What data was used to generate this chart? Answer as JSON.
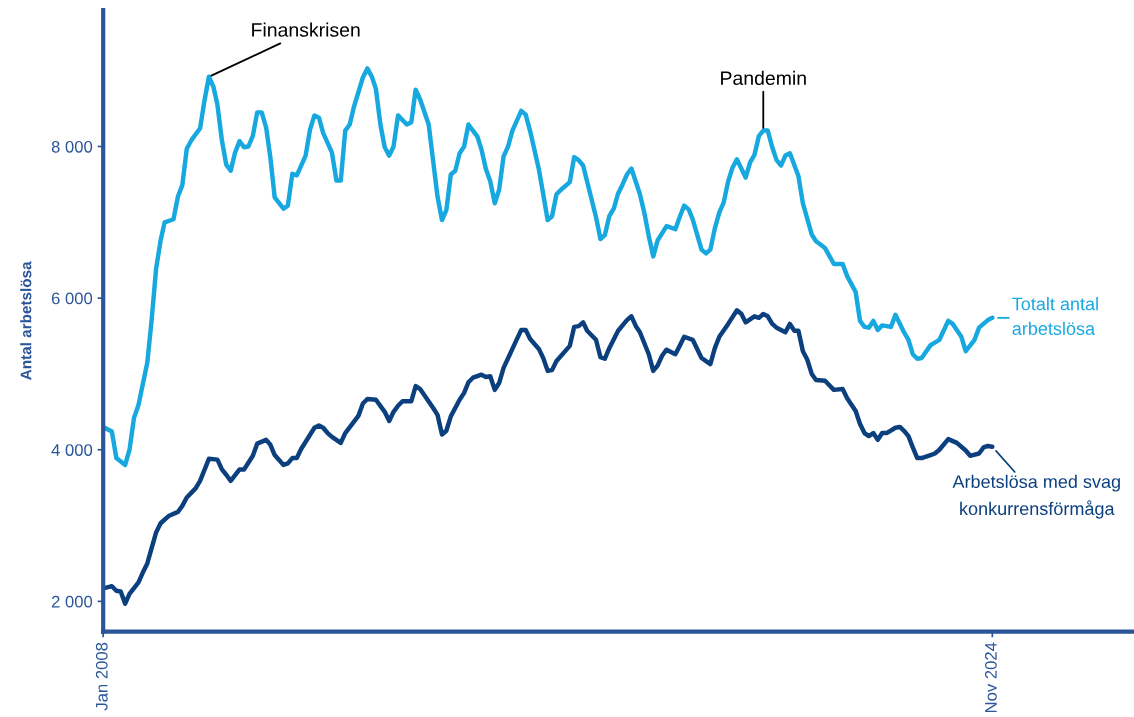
{
  "chart_data": {
    "type": "line",
    "ylabel": "Antal arbetslösa",
    "xlim": [
      "2008-01",
      "2027-07"
    ],
    "xticks": [
      {
        "value": "2008-01",
        "label": "Jan 2008"
      },
      {
        "value": "2024-11",
        "label": "Nov 2024"
      }
    ],
    "ylim": [
      1600,
      9800
    ],
    "yticks": [
      {
        "value": 2000,
        "label": "2 000"
      },
      {
        "value": 4000,
        "label": "4 000"
      },
      {
        "value": 6000,
        "label": "6 000"
      },
      {
        "value": 8000,
        "label": "8 000"
      }
    ],
    "grid": false,
    "legend": "right",
    "marker": "none",
    "line_style": "solid",
    "annotations": [
      {
        "text": "Finanskrisen",
        "x": "2010-01",
        "y": 8920
      },
      {
        "text": "Pandemin",
        "x": "2020-07",
        "y": 8210
      }
    ],
    "series": [
      {
        "name": "Totalt antal\narbetslösa",
        "color": "#17a8e0",
        "x": [
          "2008-01",
          "2008-03",
          "2008-04",
          "2008-06",
          "2008-07",
          "2008-08",
          "2008-09",
          "2008-11",
          "2008-12",
          "2009-01",
          "2009-02",
          "2009-03",
          "2009-05",
          "2009-06",
          "2009-07",
          "2009-08",
          "2009-09",
          "2009-11",
          "2009-12",
          "2010-01",
          "2010-02",
          "2010-03",
          "2010-04",
          "2010-05",
          "2010-06",
          "2010-07",
          "2010-08",
          "2010-09",
          "2010-10",
          "2010-11",
          "2010-12",
          "2011-01",
          "2011-02",
          "2011-03",
          "2011-04",
          "2011-06",
          "2011-07",
          "2011-08",
          "2011-09",
          "2011-11",
          "2011-12",
          "2012-01",
          "2012-02",
          "2012-03",
          "2012-05",
          "2012-06",
          "2012-07",
          "2012-08",
          "2012-09",
          "2012-10",
          "2012-12",
          "2013-01",
          "2013-02",
          "2013-03",
          "2013-04",
          "2013-05",
          "2013-06",
          "2013-07",
          "2013-08",
          "2013-10",
          "2013-11",
          "2013-12",
          "2014-01",
          "2014-03",
          "2014-05",
          "2014-06",
          "2014-07",
          "2014-08",
          "2014-09",
          "2014-10",
          "2014-11",
          "2014-12",
          "2015-01",
          "2015-02",
          "2015-03",
          "2015-04",
          "2015-05",
          "2015-06",
          "2015-07",
          "2015-08",
          "2015-09",
          "2015-10",
          "2015-12",
          "2016-01",
          "2016-02",
          "2016-04",
          "2016-06",
          "2016-07",
          "2016-08",
          "2016-09",
          "2016-11",
          "2016-12",
          "2017-01",
          "2017-02",
          "2017-05",
          "2017-06",
          "2017-07",
          "2017-08",
          "2017-09",
          "2017-10",
          "2017-11",
          "2017-12",
          "2018-01",
          "2018-03",
          "2018-04",
          "2018-05",
          "2018-06",
          "2018-07",
          "2018-09",
          "2018-11",
          "2018-12",
          "2019-01",
          "2019-02",
          "2019-03",
          "2019-05",
          "2019-06",
          "2019-07",
          "2019-08",
          "2019-09",
          "2019-10",
          "2019-11",
          "2019-12",
          "2020-01",
          "2020-03",
          "2020-04",
          "2020-05",
          "2020-06",
          "2020-07",
          "2020-08",
          "2020-09",
          "2020-10",
          "2020-11",
          "2020-12",
          "2021-01",
          "2021-03",
          "2021-04",
          "2021-06",
          "2021-07",
          "2021-09",
          "2021-11",
          "2022-01",
          "2022-02",
          "2022-04",
          "2022-05",
          "2022-06",
          "2022-07",
          "2022-08",
          "2022-09",
          "2022-10",
          "2022-12",
          "2023-01",
          "2023-03",
          "2023-04",
          "2023-05",
          "2023-06",
          "2023-07",
          "2023-09",
          "2023-11",
          "2024-01",
          "2024-02",
          "2024-04",
          "2024-05",
          "2024-07",
          "2024-08",
          "2024-10",
          "2024-11"
        ],
        "values": [
          4300,
          4240,
          3890,
          3800,
          4000,
          4420,
          4590,
          5150,
          5710,
          6390,
          6760,
          7000,
          7040,
          7340,
          7490,
          7970,
          8080,
          8240,
          8600,
          8920,
          8790,
          8550,
          8080,
          7760,
          7680,
          7920,
          8070,
          7990,
          8000,
          8140,
          8450,
          8450,
          8250,
          7870,
          7330,
          7180,
          7220,
          7640,
          7620,
          7880,
          8220,
          8410,
          8380,
          8180,
          7920,
          7550,
          7550,
          8210,
          8290,
          8530,
          8910,
          9030,
          8920,
          8760,
          8290,
          7990,
          7880,
          8000,
          8410,
          8290,
          8320,
          8750,
          8620,
          8290,
          7340,
          7030,
          7160,
          7630,
          7680,
          7910,
          8000,
          8290,
          8210,
          8130,
          7960,
          7700,
          7540,
          7250,
          7430,
          7870,
          8000,
          8210,
          8470,
          8420,
          8200,
          7700,
          7030,
          7080,
          7370,
          7430,
          7530,
          7860,
          7820,
          7750,
          7070,
          6780,
          6830,
          7080,
          7180,
          7380,
          7500,
          7630,
          7710,
          7370,
          7120,
          6820,
          6550,
          6760,
          6950,
          6910,
          7070,
          7220,
          7170,
          7040,
          6640,
          6590,
          6640,
          6920,
          7130,
          7260,
          7540,
          7720,
          7830,
          7590,
          7790,
          7890,
          8140,
          8210,
          8210,
          7990,
          7820,
          7750,
          7880,
          7910,
          7610,
          7250,
          6840,
          6750,
          6660,
          6450,
          6450,
          6290,
          6080,
          5700,
          5620,
          5610,
          5700,
          5580,
          5640,
          5620,
          5780,
          5550,
          5450,
          5260,
          5200,
          5210,
          5380,
          5450,
          5700,
          5660,
          5490,
          5300,
          5450,
          5610,
          5710,
          5740
        ]
      },
      {
        "name": "Arbetslösa med svag\nkonkurrensförmåga",
        "color": "#0b3f7e",
        "x": [
          "2008-01",
          "2008-03",
          "2008-04",
          "2008-05",
          "2008-06",
          "2008-07",
          "2008-09",
          "2008-10",
          "2008-11",
          "2009-01",
          "2009-02",
          "2009-04",
          "2009-06",
          "2009-07",
          "2009-08",
          "2009-10",
          "2009-11",
          "2010-01",
          "2010-03",
          "2010-04",
          "2010-05",
          "2010-06",
          "2010-08",
          "2010-09",
          "2010-11",
          "2010-12",
          "2011-02",
          "2011-03",
          "2011-04",
          "2011-06",
          "2011-07",
          "2011-08",
          "2011-09",
          "2011-10",
          "2012-01",
          "2012-02",
          "2012-03",
          "2012-04",
          "2012-05",
          "2012-07",
          "2012-08",
          "2012-11",
          "2012-12",
          "2013-01",
          "2013-03",
          "2013-05",
          "2013-06",
          "2013-07",
          "2013-08",
          "2013-09",
          "2013-11",
          "2013-12",
          "2014-01",
          "2014-04",
          "2014-05",
          "2014-06",
          "2014-07",
          "2014-08",
          "2014-10",
          "2014-11",
          "2014-12",
          "2015-01",
          "2015-03",
          "2015-04",
          "2015-05",
          "2015-06",
          "2015-07",
          "2015-08",
          "2015-10",
          "2015-11",
          "2015-12",
          "2016-01",
          "2016-02",
          "2016-04",
          "2016-05",
          "2016-06",
          "2016-07",
          "2016-08",
          "2016-11",
          "2016-12",
          "2017-01",
          "2017-02",
          "2017-03",
          "2017-05",
          "2017-06",
          "2017-07",
          "2017-08",
          "2017-10",
          "2017-12",
          "2018-01",
          "2018-02",
          "2018-03",
          "2018-05",
          "2018-06",
          "2018-07",
          "2018-08",
          "2018-09",
          "2018-11",
          "2018-12",
          "2019-01",
          "2019-03",
          "2019-05",
          "2019-06",
          "2019-07",
          "2019-08",
          "2019-09",
          "2019-11",
          "2020-01",
          "2020-02",
          "2020-03",
          "2020-05",
          "2020-06",
          "2020-07",
          "2020-08",
          "2020-09",
          "2020-10",
          "2020-12",
          "2021-01",
          "2021-02",
          "2021-03",
          "2021-04",
          "2021-05",
          "2021-06",
          "2021-07",
          "2021-09",
          "2021-10",
          "2021-11",
          "2022-01",
          "2022-02",
          "2022-04",
          "2022-05",
          "2022-06",
          "2022-07",
          "2022-08",
          "2022-09",
          "2022-10",
          "2022-11",
          "2023-01",
          "2023-02",
          "2023-03",
          "2023-04",
          "2023-05",
          "2023-06",
          "2023-07",
          "2023-09",
          "2023-10",
          "2023-11",
          "2024-01",
          "2024-03",
          "2024-05",
          "2024-06",
          "2024-08",
          "2024-09",
          "2024-10",
          "2024-11"
        ],
        "values": [
          2170,
          2200,
          2140,
          2130,
          1970,
          2100,
          2250,
          2380,
          2500,
          2910,
          3030,
          3130,
          3180,
          3260,
          3370,
          3490,
          3590,
          3880,
          3870,
          3740,
          3670,
          3590,
          3740,
          3740,
          3920,
          4080,
          4130,
          4070,
          3930,
          3800,
          3820,
          3890,
          3890,
          4010,
          4290,
          4320,
          4290,
          4220,
          4170,
          4090,
          4220,
          4450,
          4610,
          4670,
          4660,
          4500,
          4380,
          4500,
          4580,
          4640,
          4640,
          4840,
          4800,
          4550,
          4460,
          4200,
          4250,
          4440,
          4660,
          4750,
          4890,
          4950,
          4990,
          4960,
          4970,
          4790,
          4880,
          5080,
          5330,
          5460,
          5580,
          5580,
          5460,
          5330,
          5210,
          5040,
          5050,
          5170,
          5370,
          5620,
          5630,
          5680,
          5570,
          5450,
          5220,
          5200,
          5340,
          5570,
          5710,
          5760,
          5630,
          5550,
          5260,
          5040,
          5110,
          5240,
          5320,
          5260,
          5370,
          5490,
          5450,
          5210,
          5170,
          5130,
          5340,
          5490,
          5660,
          5840,
          5790,
          5680,
          5760,
          5740,
          5790,
          5760,
          5660,
          5610,
          5550,
          5660,
          5570,
          5570,
          5300,
          5190,
          5000,
          4920,
          4910,
          4850,
          4790,
          4800,
          4680,
          4510,
          4340,
          4220,
          4180,
          4220,
          4130,
          4220,
          4220,
          4290,
          4300,
          4250,
          4180,
          4030,
          3890,
          3890,
          3930,
          3950,
          4000,
          4140,
          4090,
          3990,
          3920,
          3950,
          4030,
          4050,
          4040
        ]
      }
    ]
  }
}
